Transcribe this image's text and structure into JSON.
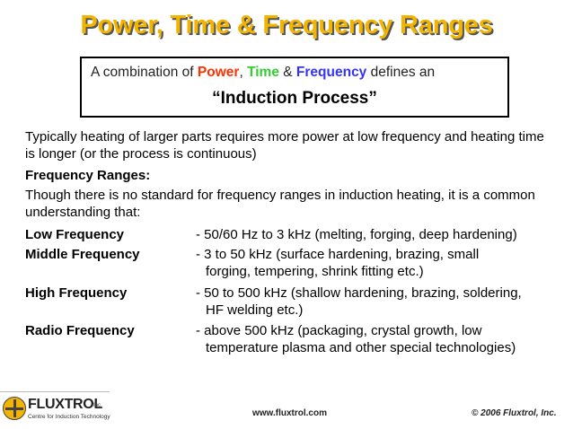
{
  "slide": {
    "title": "Power, Time & Frequency Ranges",
    "definition": {
      "prefix": "A combination of ",
      "power": "Power",
      "comma": ",",
      "time": "Time",
      "amp": " & ",
      "frequency": "Frequency",
      "suffix": " defines an",
      "process": "“Induction Process”"
    },
    "intro": "Typically heating of larger parts requires more power at low frequency and heating time is longer (or the process is continuous)",
    "ranges_heading": "Frequency Ranges:",
    "ranges_note": "Though there is no standard for frequency ranges in induction heating, it is a common understanding that:",
    "ranges": [
      {
        "label": "Low Frequency",
        "desc": "- 50/60 Hz to 3 kHz (melting, forging, deep hardening)",
        "cont": ""
      },
      {
        "label": "Middle Frequency",
        "desc": "- 3 to 50 kHz (surface hardening, brazing, small",
        "cont": "forging, tempering, shrink fitting etc.)"
      },
      {
        "label": "High Frequency",
        "desc": "- 50 to 500 kHz (shallow hardening, brazing, soldering,",
        "cont": "HF welding etc.)"
      },
      {
        "label": "Radio Frequency",
        "desc": "- above 500 kHz (packaging, crystal growth, low",
        "cont": "temperature plasma and other special technologies)"
      }
    ]
  },
  "footer": {
    "logo_text": "FLUXTROL",
    "logo_inc": "Inc.",
    "logo_tagline": "Centre for Induction Technology",
    "url": "www.fluxtrol.com",
    "copyright": "© 2006 Fluxtrol, Inc."
  },
  "colors": {
    "title": "#f2b400",
    "power": "#ff3300",
    "time": "#33cc33",
    "frequency": "#3333ff"
  }
}
